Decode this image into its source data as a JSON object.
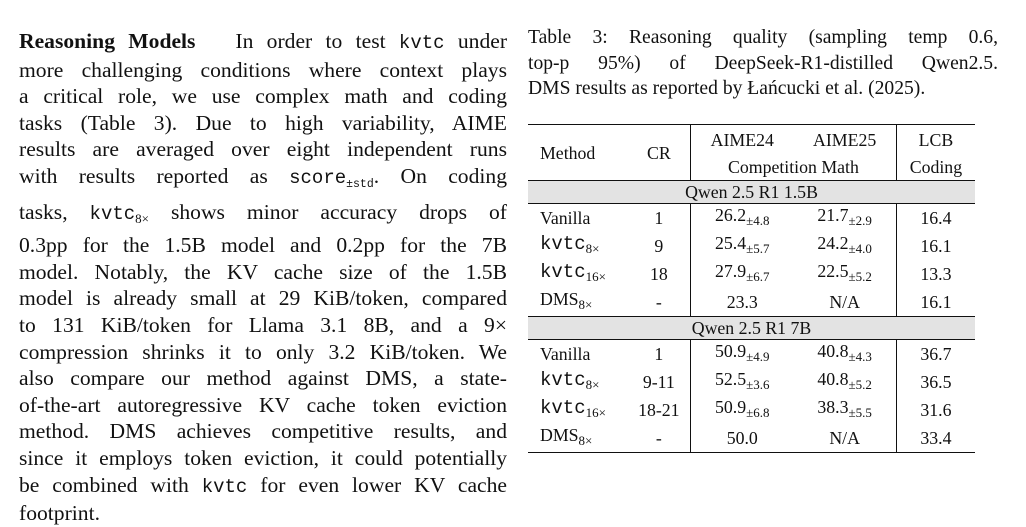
{
  "paragraph": {
    "heading": "Reasoning Models",
    "line1_a": "In order to test",
    "line1_code": "kvtc",
    "line1_b": "under",
    "line2": "more challenging conditions where context plays",
    "line3": "a critical role, we use complex math and coding",
    "line4": "tasks (Table 3).  Due to high variability, AIME",
    "line5": "results are averaged over eight independent runs",
    "line6_a": "with results reported as",
    "line6_code": "score",
    "line6_sub": "±std",
    "line6_b": ".  On coding",
    "line7_a": "tasks,",
    "line7_code": "kvtc",
    "line7_sub": "8×",
    "line7_b": "shows minor accuracy drops of",
    "line8": "0.3pp for the 1.5B model and 0.2pp for the 7B",
    "line9": "model.  Notably, the KV cache size of the 1.5B",
    "line10": "model is already small at 29 KiB/token, compared",
    "line11": "to 131 KiB/token for Llama 3.1 8B, and a 9×",
    "line12": "compression shrinks it to only 3.2 KiB/token.  We",
    "line13": "also compare our method against DMS, a state-",
    "line14": "of-the-art autoregressive KV cache token eviction",
    "line15": "method.  DMS achieves competitive results, and",
    "line16": "since it employs token eviction, it could potentially",
    "line17_a": "be combined with",
    "line17_code": "kvtc",
    "line17_b": "for even lower KV cache",
    "line18": "footprint."
  },
  "caption": {
    "line1": "Table 3:  Reasoning quality (sampling temp 0.6,",
    "line2": "top-p 95%) of DeepSeek-R1-distilled Qwen2.5.",
    "line3": "DMS results as reported by Łańcucki et al. (2025)."
  },
  "table": {
    "headers": {
      "method": "Method",
      "cr": "CR",
      "aime24": "AIME24",
      "aime25": "AIME25",
      "competition_math": "Competition Math",
      "lcb": "LCB",
      "coding": "Coding"
    },
    "groups": [
      {
        "title": "Qwen 2.5 R1 1.5B",
        "rows": [
          {
            "method": "Vanilla",
            "sub": "",
            "cr": "1",
            "aime24": "26.2",
            "aime24_pm": "±4.8",
            "aime25": "21.7",
            "aime25_pm": "±2.9",
            "lcb": "16.4"
          },
          {
            "method": "kvtc",
            "sub": "8×",
            "cr": "9",
            "aime24": "25.4",
            "aime24_pm": "±5.7",
            "aime25": "24.2",
            "aime25_pm": "±4.0",
            "lcb": "16.1"
          },
          {
            "method": "kvtc",
            "sub": "16×",
            "cr": "18",
            "aime24": "27.9",
            "aime24_pm": "±6.7",
            "aime25": "22.5",
            "aime25_pm": "±5.2",
            "lcb": "13.3"
          },
          {
            "method": "DMS",
            "sub": "8×",
            "cr": "-",
            "aime24": "23.3",
            "aime24_pm": "",
            "aime25": "N/A",
            "aime25_pm": "",
            "lcb": "16.1"
          }
        ]
      },
      {
        "title": "Qwen 2.5 R1 7B",
        "rows": [
          {
            "method": "Vanilla",
            "sub": "",
            "cr": "1",
            "aime24": "50.9",
            "aime24_pm": "±4.9",
            "aime25": "40.8",
            "aime25_pm": "±4.3",
            "lcb": "36.7"
          },
          {
            "method": "kvtc",
            "sub": "8×",
            "cr": "9-11",
            "aime24": "52.5",
            "aime24_pm": "±3.6",
            "aime25": "40.8",
            "aime25_pm": "±5.2",
            "lcb": "36.5"
          },
          {
            "method": "kvtc",
            "sub": "16×",
            "cr": "18-21",
            "aime24": "50.9",
            "aime24_pm": "±6.8",
            "aime25": "38.3",
            "aime25_pm": "±5.5",
            "lcb": "31.6"
          },
          {
            "method": "DMS",
            "sub": "8×",
            "cr": "-",
            "aime24": "50.0",
            "aime24_pm": "",
            "aime25": "N/A",
            "aime25_pm": "",
            "lcb": "33.4"
          }
        ]
      }
    ]
  }
}
